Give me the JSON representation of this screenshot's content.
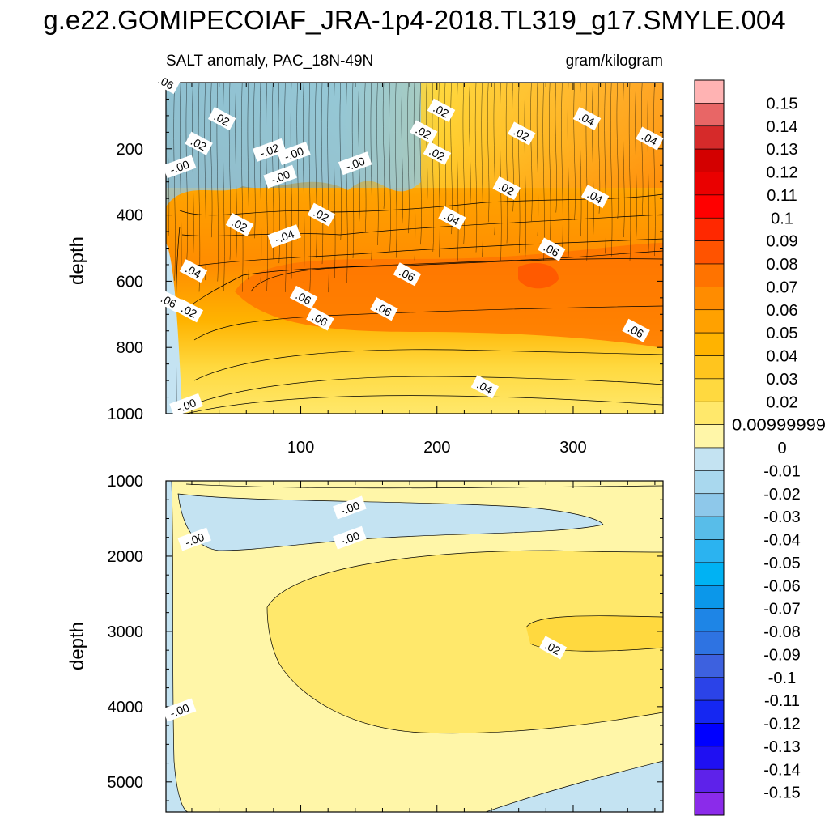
{
  "chart_data": {
    "type": "heatmap",
    "title": "g.e22.GOMIPECOIAF_JRA-1p4-2018.TL319_g17.SMYLE.004",
    "subtitle_left": "SALT anomaly, PAC_18N-49N",
    "subtitle_right": "gram/kilogram",
    "xlabel": "",
    "ylabel": "depth",
    "xlim": [
      1,
      366
    ],
    "x_ticks": [
      "100",
      "200",
      "300"
    ],
    "x_tick_values": [
      100,
      200,
      300
    ],
    "panels": [
      {
        "name": "upper",
        "ylim": [
          0,
          1000
        ],
        "y_ticks": [
          "200",
          "400",
          "600",
          "800",
          "1000"
        ],
        "y_tick_values": [
          200,
          400,
          600,
          800,
          1000
        ],
        "contour_labels": [
          {
            "text": ".02",
            "x": 42,
            "y": 110
          },
          {
            "text": ".02",
            "x": 25,
            "y": 185
          },
          {
            "text": "-.02",
            "x": 77,
            "y": 205
          },
          {
            "text": "-.00",
            "x": 95,
            "y": 215
          },
          {
            "text": "-.00",
            "x": 140,
            "y": 245
          },
          {
            "text": "-.00",
            "x": 11,
            "y": 255
          },
          {
            "text": "-.00",
            "x": 85,
            "y": 285
          },
          {
            "text": ".02",
            "x": 55,
            "y": 430
          },
          {
            "text": ".02",
            "x": 115,
            "y": 400
          },
          {
            "text": "-.04",
            "x": 88,
            "y": 465
          },
          {
            "text": ".02",
            "x": 203,
            "y": 85
          },
          {
            "text": ".02",
            "x": 190,
            "y": 150
          },
          {
            "text": ".02",
            "x": 200,
            "y": 215
          },
          {
            "text": ".02",
            "x": 262,
            "y": 155
          },
          {
            "text": ".02",
            "x": 251,
            "y": 320
          },
          {
            "text": ".04",
            "x": 310,
            "y": 110
          },
          {
            "text": ".04",
            "x": 356,
            "y": 170
          },
          {
            "text": ".04",
            "x": 316,
            "y": 345
          },
          {
            "text": ".04",
            "x": 211,
            "y": 410
          },
          {
            "text": ".04",
            "x": 21,
            "y": 570
          },
          {
            "text": ".06",
            "x": 178,
            "y": 580
          },
          {
            "text": ".06",
            "x": 284,
            "y": 505
          },
          {
            "text": ".06",
            "x": 3,
            "y": 660
          },
          {
            "text": ".06",
            "x": 1,
            "y": 0
          },
          {
            "text": ".06",
            "x": 102,
            "y": 650
          },
          {
            "text": ".06",
            "x": 161,
            "y": 685
          },
          {
            "text": ".06",
            "x": 114,
            "y": 715
          },
          {
            "text": ".06",
            "x": 346,
            "y": 750
          },
          {
            "text": ".02",
            "x": 18,
            "y": 690
          },
          {
            "text": ".04",
            "x": 235,
            "y": 920
          },
          {
            "text": "-.00",
            "x": 16,
            "y": 975
          }
        ]
      },
      {
        "name": "lower",
        "ylim": [
          1000,
          5400
        ],
        "y_ticks": [
          "1000",
          "2000",
          "3000",
          "4000",
          "5000"
        ],
        "y_tick_values": [
          1000,
          2000,
          3000,
          4000,
          5000
        ],
        "contour_labels": [
          {
            "text": "-.00",
            "x": 136,
            "y": 1360
          },
          {
            "text": "-.00",
            "x": 136,
            "y": 1760
          },
          {
            "text": "-.00",
            "x": 22,
            "y": 1780
          },
          {
            "text": ".02",
            "x": 285,
            "y": 3220
          },
          {
            "text": "-.00",
            "x": 11,
            "y": 4050
          }
        ]
      }
    ],
    "colorbar": {
      "labels": [
        "0.15",
        "0.14",
        "0.13",
        "0.12",
        "0.11",
        "0.1",
        "0.09",
        "0.08",
        "0.07",
        "0.06",
        "0.05",
        "0.04",
        "0.03",
        "0.02",
        "0.00999999",
        "0",
        "-0.01",
        "-0.02",
        "-0.03",
        "-0.04",
        "-0.05",
        "-0.06",
        "-0.07",
        "-0.08",
        "-0.09",
        "-0.1",
        "-0.11",
        "-0.12",
        "-0.13",
        "-0.14",
        "-0.15"
      ],
      "colors": [
        "#ffb3b3",
        "#e86666",
        "#d62a2a",
        "#d30000",
        "#ea0000",
        "#ff0000",
        "#ff2800",
        "#ff5300",
        "#ff7300",
        "#ff8c00",
        "#ffa100",
        "#ffb300",
        "#ffc51e",
        "#ffd93f",
        "#ffe86b",
        "#fff6a8",
        "#c4e3f2",
        "#a9d8ee",
        "#8ec8ea",
        "#58bde9",
        "#2bb3f0",
        "#00b2f3",
        "#0b97ea",
        "#1e85e6",
        "#2e73e2",
        "#3d61df",
        "#2b43e8",
        "#1527f2",
        "#0000ff",
        "#1f10f2",
        "#5e22ea",
        "#8b2bea"
      ]
    }
  }
}
